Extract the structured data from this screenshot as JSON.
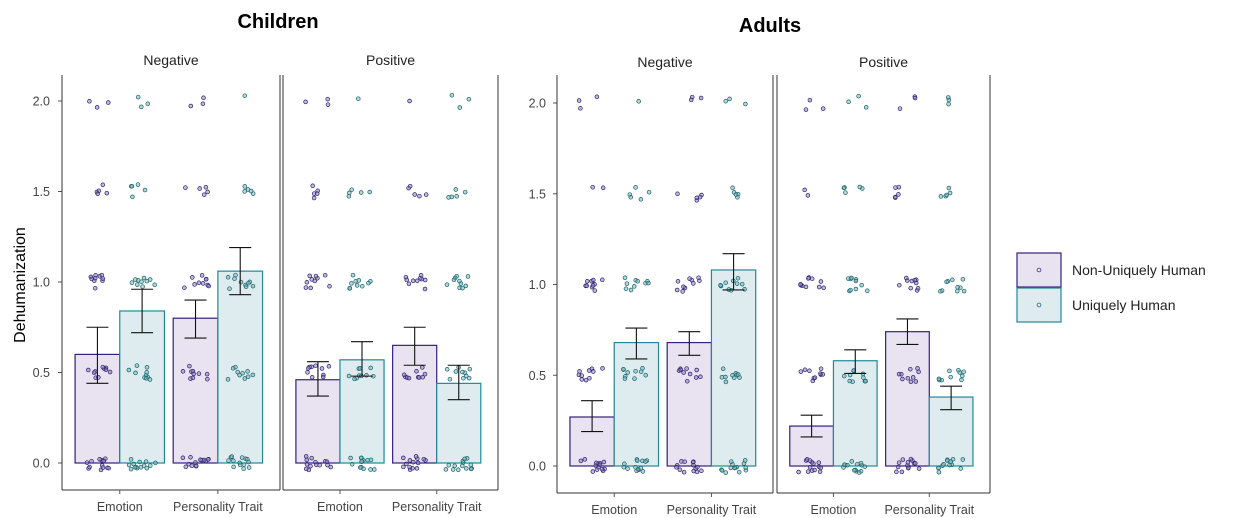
{
  "chart_data": [
    {
      "type": "bar",
      "title": "Children",
      "ylabel": "Dehumanization",
      "ylim": [
        -0.05,
        2.15
      ],
      "yticks": [
        "0.0",
        "0.5",
        "1.0",
        "1.5",
        "2.0"
      ],
      "facets": [
        {
          "label": "Negative",
          "categories": [
            "Emotion",
            "Personality Trait"
          ],
          "series": [
            {
              "name": "Non-Uniquely Human",
              "values": [
                0.6,
                0.8
              ],
              "ci_low": [
                0.44,
                0.69
              ],
              "ci_high": [
                0.75,
                0.9
              ]
            },
            {
              "name": "Uniquely Human",
              "values": [
                0.84,
                1.06
              ],
              "ci_low": [
                0.72,
                0.93
              ],
              "ci_high": [
                0.96,
                1.19
              ]
            }
          ]
        },
        {
          "label": "Positive",
          "categories": [
            "Emotion",
            "Personality Trait"
          ],
          "series": [
            {
              "name": "Non-Uniquely Human",
              "values": [
                0.46,
                0.65
              ],
              "ci_low": [
                0.37,
                0.54
              ],
              "ci_high": [
                0.56,
                0.75
              ]
            },
            {
              "name": "Uniquely Human",
              "values": [
                0.57,
                0.44
              ],
              "ci_low": [
                0.48,
                0.35
              ],
              "ci_high": [
                0.67,
                0.54
              ]
            }
          ]
        }
      ]
    },
    {
      "type": "bar",
      "title": "Adults",
      "ylabel": "",
      "ylim": [
        -0.05,
        2.15
      ],
      "yticks": [
        "0.0",
        "0.5",
        "1.0",
        "1.5",
        "2.0"
      ],
      "facets": [
        {
          "label": "Negative",
          "categories": [
            "Emotion",
            "Personality Trait"
          ],
          "series": [
            {
              "name": "Non-Uniquely Human",
              "values": [
                0.27,
                0.68
              ],
              "ci_low": [
                0.19,
                0.61
              ],
              "ci_high": [
                0.36,
                0.74
              ]
            },
            {
              "name": "Uniquely Human",
              "values": [
                0.68,
                1.08
              ],
              "ci_low": [
                0.59,
                0.97
              ],
              "ci_high": [
                0.76,
                1.17
              ]
            }
          ]
        },
        {
          "label": "Positive",
          "categories": [
            "Emotion",
            "Personality Trait"
          ],
          "series": [
            {
              "name": "Non-Uniquely Human",
              "values": [
                0.22,
                0.74
              ],
              "ci_low": [
                0.16,
                0.67
              ],
              "ci_high": [
                0.28,
                0.81
              ]
            },
            {
              "name": "Uniquely Human",
              "values": [
                0.58,
                0.38
              ],
              "ci_low": [
                0.51,
                0.31
              ],
              "ci_high": [
                0.64,
                0.44
              ]
            }
          ]
        }
      ]
    }
  ],
  "legend": {
    "placement": "right",
    "items": [
      {
        "label": "Non-Uniquely Human",
        "fill": "#e9e2f1",
        "stroke": "#34207e",
        "dot": "#3f2f86"
      },
      {
        "label": "Uniquely Human",
        "fill": "#dfecef",
        "stroke": "#1f8a96",
        "dot": "#1f6d77"
      }
    ]
  },
  "colors": {
    "nonunique_fill": "#e9e2f1",
    "nonunique_stroke": "#34207e",
    "nonunique_dot": "#2d1f73",
    "unique_fill": "#dfecef",
    "unique_stroke": "#1f8a96",
    "unique_dot": "#12626b"
  }
}
